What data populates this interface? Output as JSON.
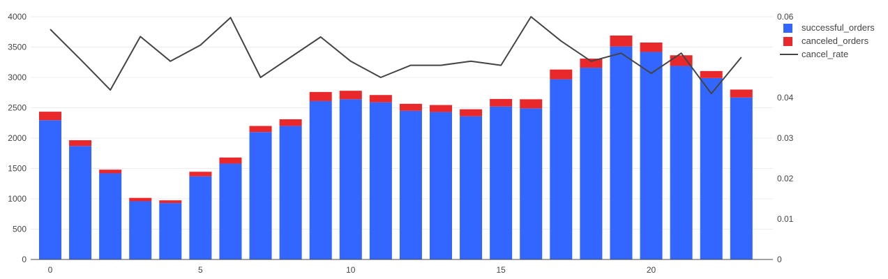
{
  "chart_data": {
    "type": "bar",
    "stacked": true,
    "x": [
      0,
      1,
      2,
      3,
      4,
      5,
      6,
      7,
      8,
      9,
      10,
      11,
      12,
      13,
      14,
      15,
      16,
      17,
      18,
      19,
      20,
      21,
      22,
      23
    ],
    "series": [
      {
        "name": "successful_orders",
        "type": "bar",
        "axis": "left",
        "color": "#3366ff",
        "values": [
          2295,
          1870,
          1420,
          960,
          930,
          1370,
          1580,
          2100,
          2200,
          2610,
          2640,
          2590,
          2450,
          2430,
          2360,
          2520,
          2490,
          2970,
          3160,
          3510,
          3420,
          3190,
          2990,
          2670
        ]
      },
      {
        "name": "canceled_orders",
        "type": "bar",
        "axis": "left",
        "color": "#e8282b",
        "values": [
          140,
          95,
          60,
          55,
          45,
          75,
          100,
          100,
          110,
          150,
          140,
          120,
          115,
          115,
          115,
          125,
          150,
          160,
          150,
          180,
          155,
          175,
          115,
          130
        ]
      },
      {
        "name": "cancel_rate",
        "type": "line",
        "axis": "right",
        "color": "#444444",
        "values": [
          0.0569,
          0.0495,
          0.0419,
          0.0551,
          0.049,
          0.053,
          0.0598,
          0.045,
          0.05,
          0.055,
          0.049,
          0.045,
          0.048,
          0.048,
          0.049,
          0.048,
          0.06,
          0.054,
          0.049,
          0.051,
          0.046,
          0.051,
          0.041,
          0.05
        ]
      }
    ],
    "x_ticks": [
      0,
      5,
      10,
      15,
      20
    ],
    "y_left": {
      "range": [
        0,
        4000
      ],
      "ticks": [
        0,
        500,
        1000,
        1500,
        2000,
        2500,
        3000,
        3500,
        4000
      ]
    },
    "y_right": {
      "range": [
        0,
        0.06
      ],
      "ticks": [
        "0",
        "0.01",
        "0.02",
        "0.03",
        "0.04",
        "0.05",
        "0.06"
      ]
    },
    "grid": true,
    "legend_position": "top-right"
  }
}
